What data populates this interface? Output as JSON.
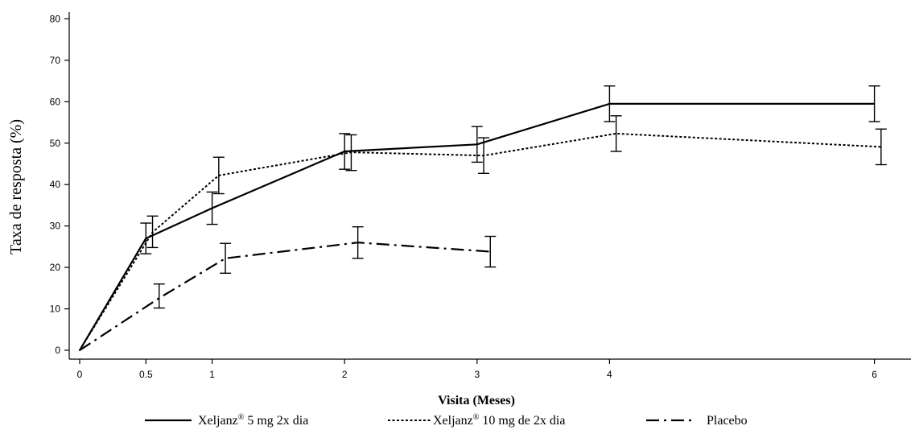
{
  "chart_data": {
    "type": "line",
    "title": "",
    "xlabel": "Visita (Meses)",
    "ylabel": "Taxa de resposta (%)",
    "xlim": [
      0,
      6.3
    ],
    "ylim": [
      0,
      80
    ],
    "x_ticks": [
      0,
      0.5,
      1,
      2,
      3,
      4,
      6
    ],
    "y_ticks": [
      0,
      10,
      20,
      30,
      40,
      50,
      60,
      70,
      80
    ],
    "grid": false,
    "legend_position": "bottom",
    "series": [
      {
        "name": "Xeljanz® 5 mg 2x dia",
        "legend_label": {
          "pre": "Xeljanz",
          "sup": "®",
          "post": " 5 mg 2x dia"
        },
        "style": "solid",
        "x": [
          0,
          0.5,
          1,
          2,
          3,
          4,
          6
        ],
        "values": [
          0,
          27,
          34.3,
          48,
          49.7,
          59.5,
          59.5
        ],
        "errors": [
          null,
          {
            "x": 0.5,
            "low": 23.3,
            "high": 30.7
          },
          {
            "x": 1,
            "low": 30.4,
            "high": 38.2
          },
          {
            "x": 2,
            "low": 43.7,
            "high": 52.3
          },
          {
            "x": 3,
            "low": 45.4,
            "high": 54.0
          },
          {
            "x": 4,
            "low": 55.2,
            "high": 63.8
          },
          {
            "x": 6,
            "low": 55.2,
            "high": 63.8
          }
        ]
      },
      {
        "name": "Xeljanz® 10 mg de 2x dia",
        "legend_label": {
          "pre": "Xeljanz",
          "sup": "®",
          "post": " 10 mg de 2x dia"
        },
        "style": "dotted",
        "x": [
          0,
          0.55,
          1.05,
          2.05,
          3.05,
          4.05,
          6.05
        ],
        "values": [
          0,
          28.5,
          42.2,
          47.8,
          47.0,
          52.3,
          49.1
        ],
        "errors": [
          null,
          {
            "x": 0.55,
            "low": 24.8,
            "high": 32.4
          },
          {
            "x": 1.05,
            "low": 37.8,
            "high": 46.6
          },
          {
            "x": 2.05,
            "low": 43.4,
            "high": 52.0
          },
          {
            "x": 3.05,
            "low": 42.7,
            "high": 51.3
          },
          {
            "x": 4.05,
            "low": 48.0,
            "high": 56.6
          },
          {
            "x": 6.05,
            "low": 44.8,
            "high": 53.4
          }
        ]
      },
      {
        "name": "Placebo",
        "legend_label": {
          "pre": "Placebo",
          "sup": "",
          "post": ""
        },
        "style": "dashdot",
        "x": [
          0,
          0.6,
          1.1,
          2.1,
          3.1
        ],
        "values": [
          0,
          12.6,
          22.2,
          26.0,
          23.8
        ],
        "errors": [
          null,
          {
            "x": 0.6,
            "low": 10.2,
            "high": 16.0
          },
          {
            "x": 1.1,
            "low": 18.6,
            "high": 25.8
          },
          {
            "x": 2.1,
            "low": 22.2,
            "high": 29.8
          },
          {
            "x": 3.1,
            "low": 20.1,
            "high": 27.5
          }
        ]
      }
    ]
  }
}
